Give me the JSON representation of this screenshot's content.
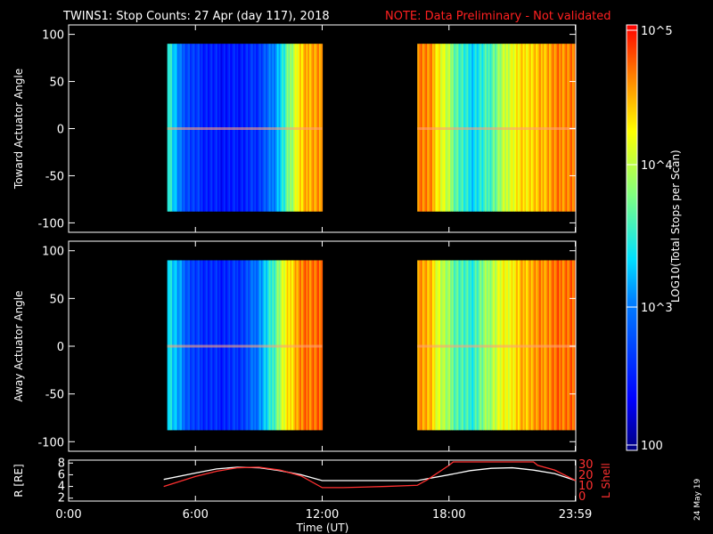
{
  "title": "TWINS1: Stop Counts: 27 Apr (day 117), 2018",
  "note": "NOTE: Data Preliminary - Not validated",
  "date_stamp": "24 May 19",
  "chart_data": [
    {
      "type": "heatmap",
      "ylabel": "Toward Actuator Angle",
      "ylim": [
        -110,
        110
      ],
      "yticks": [
        "100",
        "50",
        "0",
        "-50",
        "-100"
      ],
      "xlim_hours": [
        0,
        24
      ],
      "segments": [
        {
          "start": "04:40",
          "end": "12:00",
          "angle_range": [
            -88,
            90
          ],
          "levels": [
            0.55,
            0.3,
            0.22,
            0.18,
            0.16,
            0.16,
            0.18,
            0.22,
            0.32,
            0.5,
            0.75,
            0.85
          ]
        },
        {
          "start": "16:30",
          "end": "23:59",
          "angle_range": [
            -88,
            90
          ],
          "levels": [
            0.9,
            0.85,
            0.7,
            0.55,
            0.45,
            0.5,
            0.6,
            0.72,
            0.78,
            0.8,
            0.85,
            0.88
          ]
        }
      ]
    },
    {
      "type": "heatmap",
      "ylabel": "Away Actuator Angle",
      "ylim": [
        -110,
        110
      ],
      "yticks": [
        "100",
        "50",
        "0",
        "-50",
        "-100"
      ],
      "xlim_hours": [
        0,
        24
      ],
      "segments": [
        {
          "start": "04:40",
          "end": "12:00",
          "angle_range": [
            -88,
            90
          ],
          "levels": [
            0.5,
            0.35,
            0.22,
            0.2,
            0.18,
            0.2,
            0.24,
            0.35,
            0.5,
            0.72,
            0.85,
            0.9
          ]
        },
        {
          "start": "16:30",
          "end": "23:59",
          "angle_range": [
            -88,
            90
          ],
          "levels": [
            0.88,
            0.8,
            0.65,
            0.55,
            0.5,
            0.6,
            0.7,
            0.75,
            0.82,
            0.85,
            0.88,
            0.9
          ]
        }
      ]
    },
    {
      "type": "line",
      "ylabel": "R [RE]",
      "y2label": "L Shell",
      "yticks": [
        "8",
        "6",
        "4",
        "2"
      ],
      "y2ticks": [
        "30",
        "20",
        "10",
        "0"
      ],
      "series": [
        {
          "color": "#ffffff",
          "x_hours": [
            4.5,
            6,
            7,
            8,
            9,
            10,
            11,
            12,
            13,
            14,
            15,
            16.5,
            18,
            19,
            20,
            21,
            22,
            23,
            24
          ],
          "y": [
            5.2,
            6.3,
            7.0,
            7.3,
            7.2,
            6.7,
            6.0,
            5.0,
            5.0,
            5.0,
            5.0,
            5.0,
            6.0,
            6.7,
            7.1,
            7.2,
            6.8,
            6.2,
            5.0
          ]
        },
        {
          "color": "#ff3030",
          "x_hours": [
            4.5,
            6,
            7,
            8,
            9,
            10,
            11,
            12,
            13,
            14,
            15,
            16.5,
            17,
            18,
            18.2,
            22,
            22.2,
            23,
            24
          ],
          "y": [
            4.0,
            5.7,
            6.6,
            7.2,
            7.3,
            6.8,
            5.8,
            3.8,
            3.8,
            3.9,
            4.0,
            4.2,
            5.2,
            7.6,
            8.2,
            8.2,
            7.6,
            6.8,
            5.0
          ]
        }
      ]
    }
  ],
  "xaxis": {
    "label": "Time (UT)",
    "ticks": [
      "0:00",
      "6:00",
      "12:00",
      "18:00",
      "23:59"
    ]
  },
  "colorbar": {
    "label": "LOG10(Total Stops per Scan)",
    "ticks": [
      "10^5",
      "10^4",
      "10^3",
      "100"
    ]
  }
}
